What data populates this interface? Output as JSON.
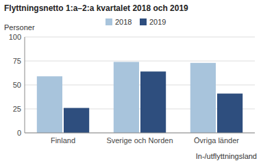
{
  "chart_data": {
    "type": "bar",
    "title": "Flyttningsnetto 1:a–2:a kvartalet 2018 och 2019",
    "ylabel": "Personer",
    "xlabel": "In-/utflyttningsland",
    "categories": [
      "Finland",
      "Sverige och Norden",
      "Övriga länder"
    ],
    "series": [
      {
        "name": "2018",
        "color": "#a8c4dc",
        "values": [
          59,
          74,
          73
        ]
      },
      {
        "name": "2019",
        "color": "#2e4e7e",
        "values": [
          26,
          64,
          41
        ]
      }
    ],
    "ylim": [
      0,
      100
    ],
    "yticks": [
      0,
      25,
      50,
      75,
      100
    ],
    "grid": true,
    "legend": "top"
  }
}
